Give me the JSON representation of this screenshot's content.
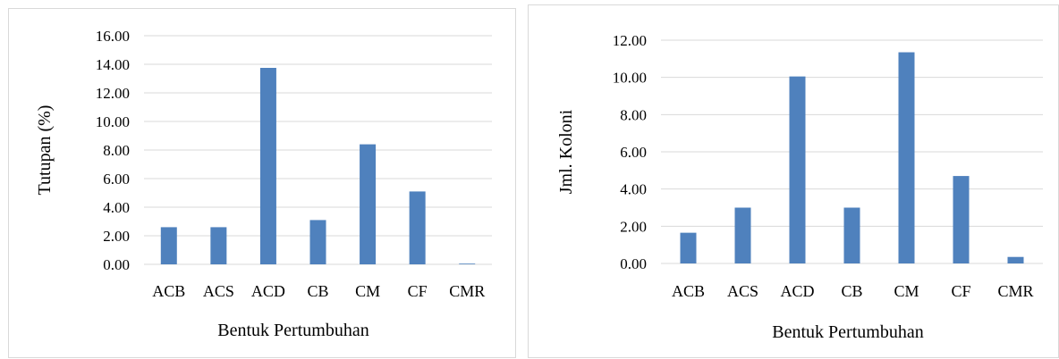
{
  "chart_data": [
    {
      "type": "bar",
      "categories": [
        "ACB",
        "ACS",
        "ACD",
        "CB",
        "CM",
        "CF",
        "CMR"
      ],
      "values": [
        2.6,
        2.6,
        13.75,
        3.1,
        8.4,
        5.1,
        0.05
      ],
      "ylabel": "Tutupan (%)",
      "xlabel": "Bentuk Pertumbuhan",
      "ylim": [
        0,
        16
      ],
      "ticks": [
        "0.00",
        "2.00",
        "4.00",
        "6.00",
        "8.00",
        "10.00",
        "12.00",
        "14.00",
        "16.00"
      ],
      "grid": true,
      "bar_color": "#4f81bd",
      "grid_color": "#d9d9d9"
    },
    {
      "type": "bar",
      "categories": [
        "ACB",
        "ACS",
        "ACD",
        "CB",
        "CM",
        "CF",
        "CMR"
      ],
      "values": [
        1.65,
        3.0,
        10.05,
        3.0,
        11.35,
        4.7,
        0.35
      ],
      "ylabel": "Jml. Koloni",
      "xlabel": "Bentuk Pertumbuhan",
      "ylim": [
        0,
        12
      ],
      "ticks": [
        "0.00",
        "2.00",
        "4.00",
        "6.00",
        "8.00",
        "10.00",
        "12.00"
      ],
      "grid": true,
      "bar_color": "#4f81bd",
      "grid_color": "#d9d9d9"
    }
  ]
}
